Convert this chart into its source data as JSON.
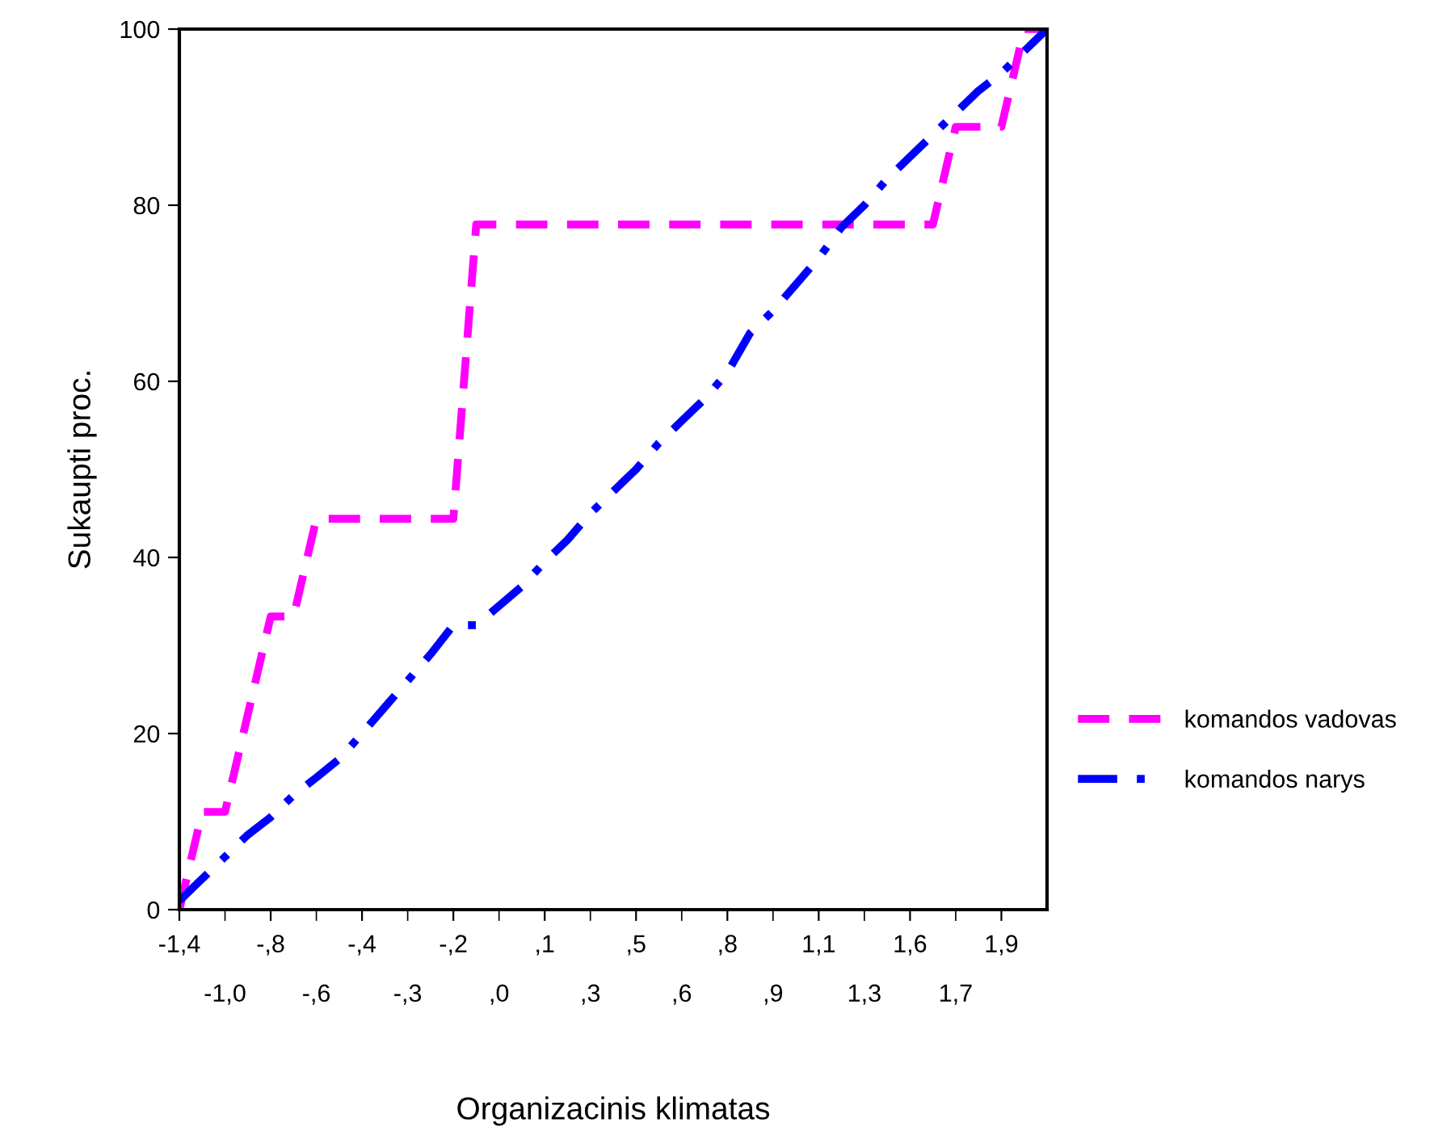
{
  "chart_data": {
    "type": "line",
    "xlabel": "Organizacinis klimatas",
    "ylabel": "Sukaupti proc.",
    "categories": [
      "-1,4",
      null,
      "-1,0",
      null,
      "-,8",
      null,
      "-,6",
      null,
      "-,4",
      null,
      "-,3",
      null,
      "-,2",
      null,
      ",0",
      null,
      ",1",
      null,
      ",3",
      null,
      ",5",
      null,
      ",6",
      null,
      ",8",
      null,
      ",9",
      null,
      "1,1",
      null,
      "1,3",
      null,
      "1,6",
      null,
      "1,7",
      null,
      "1,9",
      null,
      null
    ],
    "series": [
      {
        "name": "komandos vadovas",
        "color": "#ff00ff",
        "line_style": "dashed",
        "values": [
          0,
          11.1,
          11.1,
          22.2,
          33.3,
          33.3,
          44.4,
          44.4,
          44.4,
          44.4,
          44.4,
          44.4,
          44.4,
          77.8,
          77.8,
          77.8,
          77.8,
          77.8,
          77.8,
          77.8,
          77.8,
          77.8,
          77.8,
          77.8,
          77.8,
          77.8,
          77.8,
          77.8,
          77.8,
          77.8,
          77.8,
          77.8,
          77.8,
          77.8,
          88.9,
          88.9,
          88.9,
          100,
          100
        ]
      },
      {
        "name": "komandos narys",
        "color": "#0000ff",
        "line_style": "dashdot",
        "values": [
          1,
          3.5,
          6,
          8.5,
          10.5,
          13,
          15,
          17.1,
          20,
          23,
          26,
          29,
          32.3,
          32.3,
          34.5,
          36.7,
          39.5,
          42,
          45,
          47.5,
          50,
          53,
          55.5,
          58,
          61,
          65.5,
          68,
          71,
          74,
          77.5,
          80,
          83,
          85.5,
          88,
          90.5,
          93,
          95,
          97.5,
          100
        ]
      }
    ],
    "ylim": [
      0,
      100
    ],
    "yticks": [
      0,
      20,
      40,
      60,
      80,
      100
    ],
    "grid": false,
    "legend": "right"
  }
}
